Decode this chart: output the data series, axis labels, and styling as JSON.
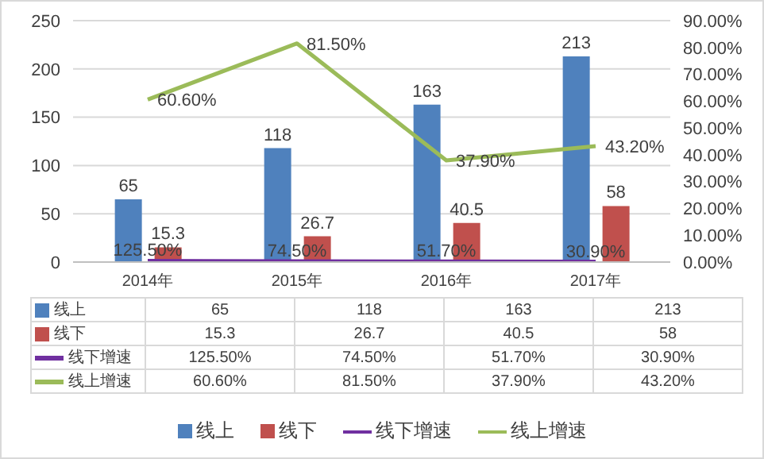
{
  "chart_data": {
    "type": "bar",
    "categories": [
      "2014年",
      "2015年",
      "2016年",
      "2017年"
    ],
    "series": [
      {
        "name": "线上",
        "color": "#4f81bd",
        "values": [
          65,
          118,
          163,
          213
        ],
        "value_labels": [
          "65",
          "118",
          "163",
          "213"
        ]
      },
      {
        "name": "线下",
        "color": "#c0504d",
        "values": [
          15.3,
          26.7,
          40.5,
          58
        ],
        "value_labels": [
          "15.3",
          "26.7",
          "40.5",
          "58"
        ]
      },
      {
        "name": "线下增速",
        "type": "line",
        "color": "#7030a0",
        "values": [
          1.255,
          0.745,
          0.517,
          0.309
        ],
        "value_labels": [
          "125.50%",
          "74.50%",
          "51.70%",
          "30.90%"
        ]
      },
      {
        "name": "线上增速",
        "type": "line",
        "axis": "y2",
        "color": "#9bbb59",
        "values": [
          60.6,
          81.5,
          37.9,
          43.2
        ],
        "value_labels": [
          "60.60%",
          "81.50%",
          "37.90%",
          "43.20%"
        ]
      }
    ],
    "ylim": [
      0,
      250
    ],
    "yticks": [
      0,
      50,
      100,
      150,
      200,
      250
    ],
    "y2lim": [
      0,
      90
    ],
    "y2ticks": [
      {
        "value": 0,
        "label": "0.00%"
      },
      {
        "value": 10,
        "label": "10.00%"
      },
      {
        "value": 20,
        "label": "20.00%"
      },
      {
        "value": 30,
        "label": "30.00%"
      },
      {
        "value": 40,
        "label": "40.00%"
      },
      {
        "value": 50,
        "label": "50.00%"
      },
      {
        "value": 60,
        "label": "60.00%"
      },
      {
        "value": 70,
        "label": "70.00%"
      },
      {
        "value": 80,
        "label": "80.00%"
      },
      {
        "value": 90,
        "label": "90.00%"
      }
    ],
    "grid": "y",
    "legend": "bottom",
    "marker": "none"
  }
}
